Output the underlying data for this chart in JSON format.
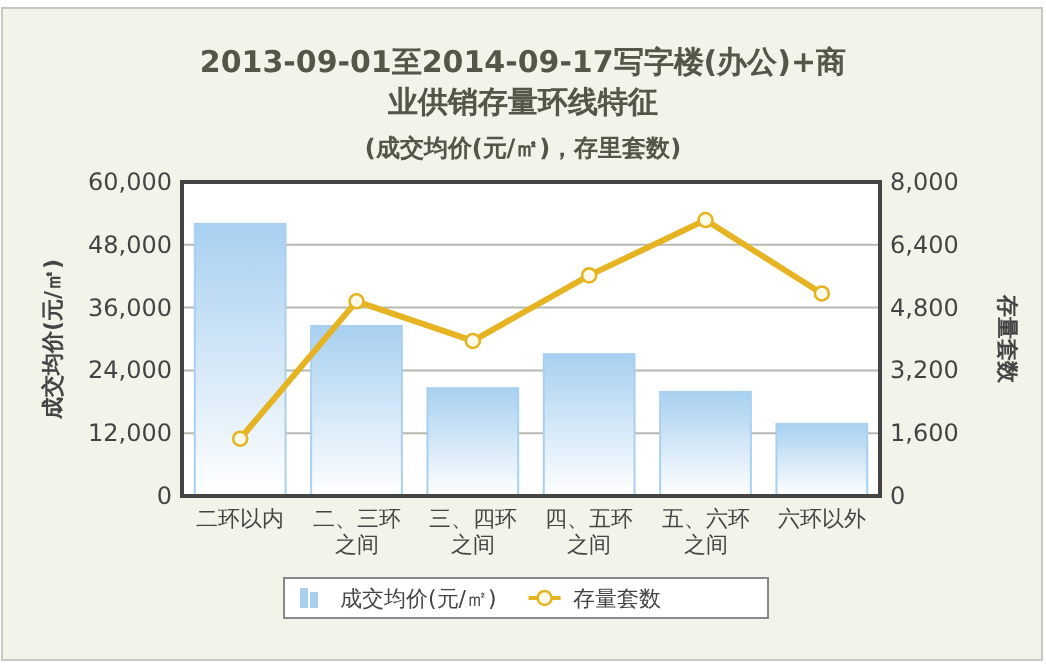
{
  "chart_data": {
    "type": "bar",
    "title": "2013-09-01至2014-09-17写字楼(办公)+商业供销存量环线特征",
    "subtitle": "(成交均价(元/㎡)，存里套数)",
    "ylabel": "成交均价(元/㎡)",
    "y2label": "存量套数",
    "categories": [
      "二环以内",
      "二、三环之间",
      "三、四环之间",
      "四、五环之间",
      "五、六环之间",
      "六环以外"
    ],
    "series": [
      {
        "name": "成交均价(元/㎡)",
        "color": "#a8d0f0",
        "values": [
          52000,
          32500,
          20600,
          27100,
          19900,
          13800
        ]
      },
      {
        "name": "存量套数",
        "type": "line",
        "axis": "y2",
        "color": "#e6b422",
        "marker": "circle",
        "values": [
          1460,
          4960,
          3950,
          5620,
          7030,
          5160
        ]
      }
    ],
    "ylim": [
      0,
      60000
    ],
    "yticks": [
      0,
      {
        "value": 12000,
        "label": "12,000"
      },
      {
        "value": 24000,
        "label": "24,000"
      },
      {
        "value": 36000,
        "label": "36,000"
      },
      {
        "value": 48000,
        "label": "48,000"
      },
      {
        "value": 60000,
        "label": "60,000"
      }
    ],
    "y2lim": [
      0,
      8000
    ],
    "y2ticks": [
      0,
      {
        "value": 1600,
        "label": "1,600"
      },
      {
        "value": 3200,
        "label": "3,200"
      },
      {
        "value": 4800,
        "label": "4,800"
      },
      {
        "value": 6400,
        "label": "6,400"
      },
      {
        "value": 8000,
        "label": "8,000"
      }
    ],
    "grid": "y",
    "legend": "bottom"
  }
}
